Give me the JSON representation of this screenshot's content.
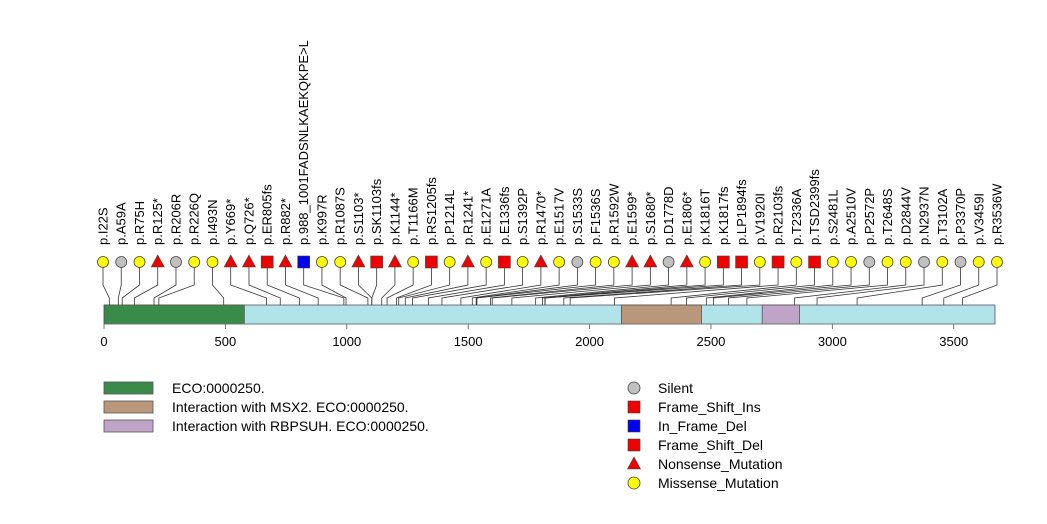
{
  "chart_data": {
    "type": "lollipop",
    "protein_length": 3670,
    "axis": {
      "ticks": [
        0,
        500,
        1000,
        1500,
        2000,
        2500,
        3000,
        3500
      ],
      "xlim": [
        0,
        3670
      ]
    },
    "domains": [
      {
        "name": "ECO:0000250.",
        "start": 1,
        "end": 578,
        "color": "#3a8a4a"
      },
      {
        "name": "Interaction with MSX2. ECO:0000250.",
        "start": 2131,
        "end": 2461,
        "color": "#b9977a"
      },
      {
        "name": "Interaction with RBPSUH. ECO:0000250.",
        "start": 2711,
        "end": 2865,
        "color": "#c0a4c8"
      }
    ],
    "mutations": [
      {
        "label": "p.I22S",
        "pos": 22,
        "type": "Missense_Mutation"
      },
      {
        "label": "p.A59A",
        "pos": 59,
        "type": "Silent"
      },
      {
        "label": "p.R75H",
        "pos": 75,
        "type": "Missense_Mutation"
      },
      {
        "label": "p.R125*",
        "pos": 125,
        "type": "Nonsense_Mutation"
      },
      {
        "label": "p.R206R",
        "pos": 206,
        "type": "Silent"
      },
      {
        "label": "p.R226Q",
        "pos": 226,
        "type": "Missense_Mutation"
      },
      {
        "label": "p.I493N",
        "pos": 493,
        "type": "Missense_Mutation"
      },
      {
        "label": "p.Y669*",
        "pos": 669,
        "type": "Nonsense_Mutation"
      },
      {
        "label": "p.Q726*",
        "pos": 726,
        "type": "Nonsense_Mutation"
      },
      {
        "label": "p.ER805fs",
        "pos": 805,
        "type": "Frame_Shift_Ins"
      },
      {
        "label": "p.R882*",
        "pos": 882,
        "type": "Nonsense_Mutation"
      },
      {
        "label": "p.988_1001FADSNLKAEKQKPE>L",
        "pos": 988,
        "type": "In_Frame_Del"
      },
      {
        "label": "p.K997R",
        "pos": 997,
        "type": "Missense_Mutation"
      },
      {
        "label": "p.R1087S",
        "pos": 1087,
        "type": "Missense_Mutation"
      },
      {
        "label": "p.S1103*",
        "pos": 1103,
        "type": "Nonsense_Mutation"
      },
      {
        "label": "p.SK1103fs",
        "pos": 1103,
        "type": "Frame_Shift_Del"
      },
      {
        "label": "p.K1144*",
        "pos": 1144,
        "type": "Nonsense_Mutation"
      },
      {
        "label": "p.T1166M",
        "pos": 1166,
        "type": "Missense_Mutation"
      },
      {
        "label": "p.RS1205fs",
        "pos": 1205,
        "type": "Frame_Shift_Del"
      },
      {
        "label": "p.P1214L",
        "pos": 1214,
        "type": "Missense_Mutation"
      },
      {
        "label": "p.R1241*",
        "pos": 1241,
        "type": "Nonsense_Mutation"
      },
      {
        "label": "p.E1271A",
        "pos": 1271,
        "type": "Missense_Mutation"
      },
      {
        "label": "p.E1336fs",
        "pos": 1336,
        "type": "Frame_Shift_Del"
      },
      {
        "label": "p.S1392P",
        "pos": 1392,
        "type": "Missense_Mutation"
      },
      {
        "label": "p.R1470*",
        "pos": 1470,
        "type": "Nonsense_Mutation"
      },
      {
        "label": "p.E1517V",
        "pos": 1517,
        "type": "Missense_Mutation"
      },
      {
        "label": "p.S1533S",
        "pos": 1533,
        "type": "Silent"
      },
      {
        "label": "p.F1536S",
        "pos": 1536,
        "type": "Missense_Mutation"
      },
      {
        "label": "p.R1592W",
        "pos": 1592,
        "type": "Missense_Mutation"
      },
      {
        "label": "p.E1599*",
        "pos": 1599,
        "type": "Nonsense_Mutation"
      },
      {
        "label": "p.S1680*",
        "pos": 1680,
        "type": "Nonsense_Mutation"
      },
      {
        "label": "p.D1778D",
        "pos": 1778,
        "type": "Silent"
      },
      {
        "label": "p.E1806*",
        "pos": 1806,
        "type": "Nonsense_Mutation"
      },
      {
        "label": "p.K1816T",
        "pos": 1816,
        "type": "Missense_Mutation"
      },
      {
        "label": "p.K1817fs",
        "pos": 1817,
        "type": "Frame_Shift_Del"
      },
      {
        "label": "p.LP1894fs",
        "pos": 1894,
        "type": "Frame_Shift_Del"
      },
      {
        "label": "p.V1920I",
        "pos": 1920,
        "type": "Missense_Mutation"
      },
      {
        "label": "p.R2103fs",
        "pos": 2103,
        "type": "Frame_Shift_Del"
      },
      {
        "label": "p.T2336A",
        "pos": 2336,
        "type": "Missense_Mutation"
      },
      {
        "label": "p.TSD2399fs",
        "pos": 2399,
        "type": "Frame_Shift_Del"
      },
      {
        "label": "p.S2481L",
        "pos": 2481,
        "type": "Missense_Mutation"
      },
      {
        "label": "p.A2510V",
        "pos": 2510,
        "type": "Missense_Mutation"
      },
      {
        "label": "p.P2572P",
        "pos": 2572,
        "type": "Silent"
      },
      {
        "label": "p.T2648S",
        "pos": 2648,
        "type": "Missense_Mutation"
      },
      {
        "label": "p.D2844V",
        "pos": 2844,
        "type": "Missense_Mutation"
      },
      {
        "label": "p.N2937N",
        "pos": 2937,
        "type": "Silent"
      },
      {
        "label": "p.T3102A",
        "pos": 3102,
        "type": "Missense_Mutation"
      },
      {
        "label": "p.P3370P",
        "pos": 3370,
        "type": "Silent"
      },
      {
        "label": "p.V3459I",
        "pos": 3459,
        "type": "Missense_Mutation"
      },
      {
        "label": "p.R3536W",
        "pos": 3536,
        "type": "Missense_Mutation"
      }
    ],
    "mutation_types": [
      {
        "name": "Silent",
        "shape": "circle",
        "color": "#c0c0c0"
      },
      {
        "name": "Frame_Shift_Ins",
        "shape": "square",
        "color": "#ee0000"
      },
      {
        "name": "In_Frame_Del",
        "shape": "square",
        "color": "#0000ee"
      },
      {
        "name": "Frame_Shift_Del",
        "shape": "square",
        "color": "#ee0000"
      },
      {
        "name": "Nonsense_Mutation",
        "shape": "triangle",
        "color": "#ee0000"
      },
      {
        "name": "Missense_Mutation",
        "shape": "circle",
        "color": "#ffff00"
      }
    ],
    "backbone_color": "#b0e4e8"
  }
}
